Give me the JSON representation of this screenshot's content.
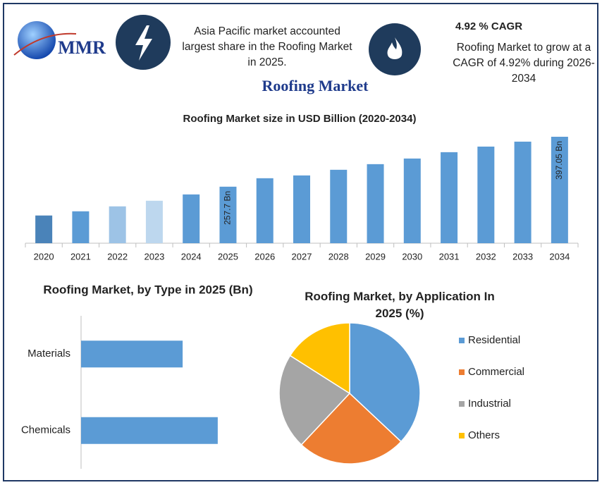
{
  "header": {
    "logo": "MMR",
    "region_text": "Asia Pacific market accounted largest share in the Roofing Market in 2025.",
    "cagr_title": "4.92 % CAGR",
    "cagr_text": "Roofing Market to grow at a CAGR of 4.92% during 2026-2034",
    "title": "Roofing Market"
  },
  "chart_data": [
    {
      "type": "bar",
      "title": "Roofing Market size in USD Billion (2020-2034)",
      "categories": [
        "2020",
        "2021",
        "2022",
        "2023",
        "2024",
        "2025",
        "2026",
        "2027",
        "2028",
        "2029",
        "2030",
        "2031",
        "2032",
        "2033",
        "2034"
      ],
      "values": [
        177.3,
        189,
        202.8,
        218.5,
        236.1,
        257.7,
        281.3,
        289.1,
        304.9,
        320.6,
        336.3,
        354,
        369.6,
        383.4,
        397.05
      ],
      "value_labels": [
        null,
        null,
        null,
        null,
        null,
        "257.7 Bn",
        null,
        null,
        null,
        null,
        null,
        null,
        null,
        null,
        "397.05 Bn"
      ],
      "colors": [
        "#4a83b9",
        "#5b9bd5",
        "#9dc3e6",
        "#bdd7ee",
        "#5b9bd5",
        "#5b9bd5",
        "#5b9bd5",
        "#5b9bd5",
        "#5b9bd5",
        "#5b9bd5",
        "#5b9bd5",
        "#5b9bd5",
        "#5b9bd5",
        "#5b9bd5",
        "#5b9bd5"
      ],
      "ylim": [
        100,
        400
      ]
    },
    {
      "type": "barh",
      "title": "Roofing Market, by Type in 2025 (Bn)",
      "categories": [
        "Materials",
        "Chemicals"
      ],
      "values": [
        110,
        148
      ],
      "color": "#5b9bd5",
      "xlim": [
        0,
        200
      ]
    },
    {
      "type": "pie",
      "title": "Roofing Market, by Application In 2025 (%)",
      "categories": [
        "Residential",
        "Commercial",
        "Industrial",
        "Others"
      ],
      "values": [
        37,
        25,
        22,
        16
      ],
      "colors": [
        "#5b9bd5",
        "#ed7d31",
        "#a5a5a5",
        "#ffc000"
      ]
    }
  ]
}
